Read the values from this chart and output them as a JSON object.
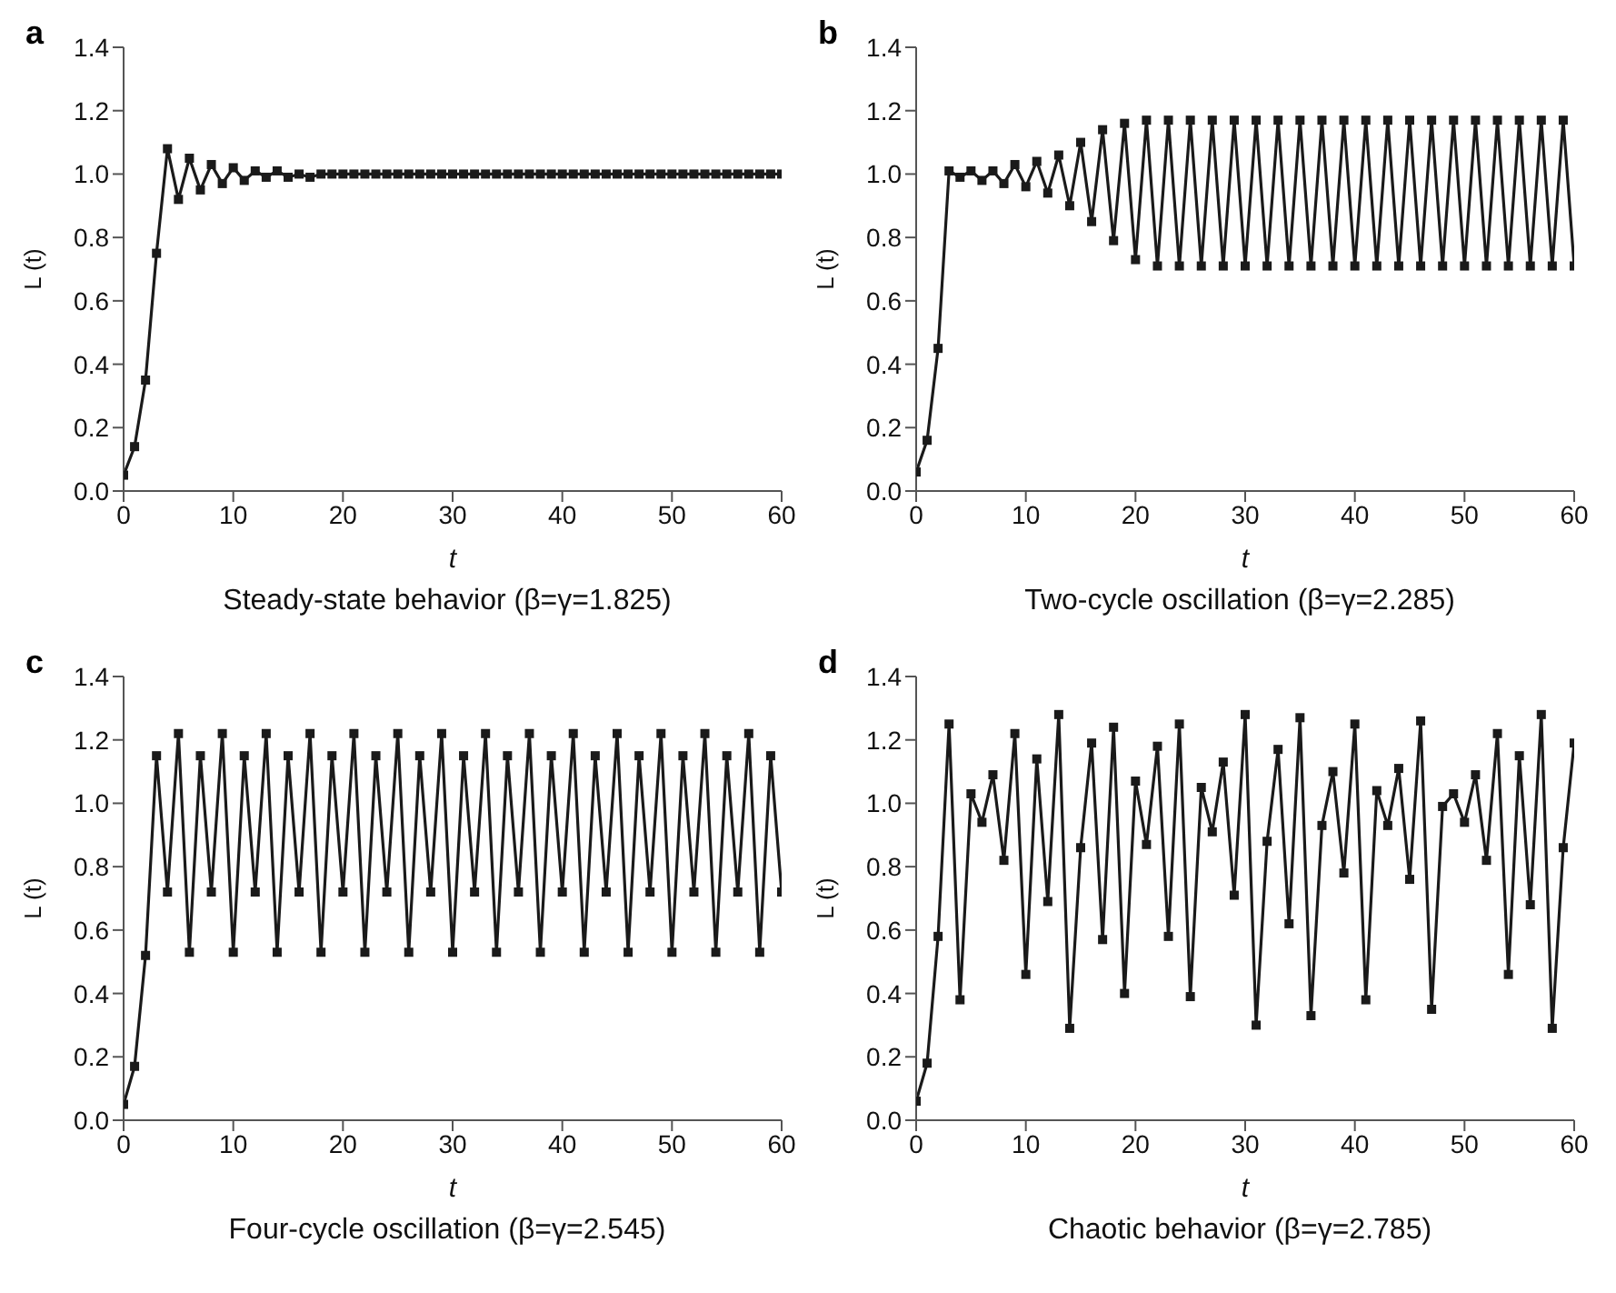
{
  "chart_data": [
    {
      "type": "line",
      "title": "Steady-state behavior (β=γ=1.825)",
      "annotations": [
        "a"
      ],
      "xlabel": "t",
      "ylabel": "L (t)",
      "marker": "square",
      "line_style": "solid",
      "xlim": [
        0,
        60
      ],
      "xticks": [
        0,
        10,
        20,
        30,
        40,
        50,
        60
      ],
      "ylim": [
        0,
        1.4
      ],
      "yticks": [
        {
          "value": 0,
          "label": "0.0"
        },
        {
          "value": 0.2,
          "label": "0.2"
        },
        {
          "value": 0.4,
          "label": "0.4"
        },
        {
          "value": 0.6,
          "label": "0.6"
        },
        {
          "value": 0.8,
          "label": "0.8"
        },
        {
          "value": 1.0,
          "label": "1.0"
        },
        {
          "value": 1.2,
          "label": "1.2"
        },
        {
          "value": 1.4,
          "label": "1.4"
        }
      ],
      "x": [
        0,
        1,
        2,
        3,
        4,
        5,
        6,
        7,
        8,
        9,
        10,
        11,
        12,
        13,
        14,
        15,
        16,
        17,
        18,
        19,
        20,
        21,
        22,
        23,
        24,
        25,
        26,
        27,
        28,
        29,
        30,
        31,
        32,
        33,
        34,
        35,
        36,
        37,
        38,
        39,
        40,
        41,
        42,
        43,
        44,
        45,
        46,
        47,
        48,
        49,
        50,
        51,
        52,
        53,
        54,
        55,
        56,
        57,
        58,
        59,
        60
      ],
      "series": [
        {
          "color": "#1a1a1a",
          "values": [
            0.05,
            0.14,
            0.35,
            0.75,
            1.08,
            0.92,
            1.05,
            0.95,
            1.03,
            0.97,
            1.02,
            0.98,
            1.01,
            0.99,
            1.01,
            0.99,
            1.0,
            0.99,
            1.0,
            1.0,
            1.0,
            1.0,
            1.0,
            1.0,
            1.0,
            1.0,
            1.0,
            1.0,
            1.0,
            1.0,
            1.0,
            1.0,
            1.0,
            1.0,
            1.0,
            1.0,
            1.0,
            1.0,
            1.0,
            1.0,
            1.0,
            1.0,
            1.0,
            1.0,
            1.0,
            1.0,
            1.0,
            1.0,
            1.0,
            1.0,
            1.0,
            1.0,
            1.0,
            1.0,
            1.0,
            1.0,
            1.0,
            1.0,
            1.0,
            1.0,
            1.0
          ]
        }
      ]
    },
    {
      "type": "line",
      "title": "Two-cycle oscillation (β=γ=2.285)",
      "annotations": [
        "b"
      ],
      "xlabel": "t",
      "ylabel": "L (t)",
      "marker": "square",
      "line_style": "solid",
      "xlim": [
        0,
        60
      ],
      "xticks": [
        0,
        10,
        20,
        30,
        40,
        50,
        60
      ],
      "ylim": [
        0,
        1.4
      ],
      "yticks": [
        {
          "value": 0,
          "label": "0.0"
        },
        {
          "value": 0.2,
          "label": "0.2"
        },
        {
          "value": 0.4,
          "label": "0.4"
        },
        {
          "value": 0.6,
          "label": "0.6"
        },
        {
          "value": 0.8,
          "label": "0.8"
        },
        {
          "value": 1.0,
          "label": "1.0"
        },
        {
          "value": 1.2,
          "label": "1.2"
        },
        {
          "value": 1.4,
          "label": "1.4"
        }
      ],
      "x": [
        0,
        1,
        2,
        3,
        4,
        5,
        6,
        7,
        8,
        9,
        10,
        11,
        12,
        13,
        14,
        15,
        16,
        17,
        18,
        19,
        20,
        21,
        22,
        23,
        24,
        25,
        26,
        27,
        28,
        29,
        30,
        31,
        32,
        33,
        34,
        35,
        36,
        37,
        38,
        39,
        40,
        41,
        42,
        43,
        44,
        45,
        46,
        47,
        48,
        49,
        50,
        51,
        52,
        53,
        54,
        55,
        56,
        57,
        58,
        59,
        60
      ],
      "series": [
        {
          "color": "#1a1a1a",
          "values": [
            0.06,
            0.16,
            0.45,
            1.01,
            0.99,
            1.01,
            0.98,
            1.01,
            0.97,
            1.03,
            0.96,
            1.04,
            0.94,
            1.06,
            0.9,
            1.1,
            0.85,
            1.14,
            0.79,
            1.16,
            0.73,
            1.17,
            0.71,
            1.17,
            0.71,
            1.17,
            0.71,
            1.17,
            0.71,
            1.17,
            0.71,
            1.17,
            0.71,
            1.17,
            0.71,
            1.17,
            0.71,
            1.17,
            0.71,
            1.17,
            0.71,
            1.17,
            0.71,
            1.17,
            0.71,
            1.17,
            0.71,
            1.17,
            0.71,
            1.17,
            0.71,
            1.17,
            0.71,
            1.17,
            0.71,
            1.17,
            0.71,
            1.17,
            0.71,
            1.17,
            0.71
          ]
        }
      ]
    },
    {
      "type": "line",
      "title": "Four-cycle oscillation (β=γ=2.545)",
      "annotations": [
        "c"
      ],
      "xlabel": "t",
      "ylabel": "L (t)",
      "marker": "square",
      "line_style": "solid",
      "xlim": [
        0,
        60
      ],
      "xticks": [
        0,
        10,
        20,
        30,
        40,
        50,
        60
      ],
      "ylim": [
        0,
        1.4
      ],
      "yticks": [
        {
          "value": 0,
          "label": "0.0"
        },
        {
          "value": 0.2,
          "label": "0.2"
        },
        {
          "value": 0.4,
          "label": "0.4"
        },
        {
          "value": 0.6,
          "label": "0.6"
        },
        {
          "value": 0.8,
          "label": "0.8"
        },
        {
          "value": 1.0,
          "label": "1.0"
        },
        {
          "value": 1.2,
          "label": "1.2"
        },
        {
          "value": 1.4,
          "label": "1.4"
        }
      ],
      "x": [
        0,
        1,
        2,
        3,
        4,
        5,
        6,
        7,
        8,
        9,
        10,
        11,
        12,
        13,
        14,
        15,
        16,
        17,
        18,
        19,
        20,
        21,
        22,
        23,
        24,
        25,
        26,
        27,
        28,
        29,
        30,
        31,
        32,
        33,
        34,
        35,
        36,
        37,
        38,
        39,
        40,
        41,
        42,
        43,
        44,
        45,
        46,
        47,
        48,
        49,
        50,
        51,
        52,
        53,
        54,
        55,
        56,
        57,
        58,
        59,
        60
      ],
      "series": [
        {
          "color": "#1a1a1a",
          "values": [
            0.05,
            0.17,
            0.52,
            1.15,
            0.72,
            1.22,
            0.53,
            1.15,
            0.72,
            1.22,
            0.53,
            1.15,
            0.72,
            1.22,
            0.53,
            1.15,
            0.72,
            1.22,
            0.53,
            1.15,
            0.72,
            1.22,
            0.53,
            1.15,
            0.72,
            1.22,
            0.53,
            1.15,
            0.72,
            1.22,
            0.53,
            1.15,
            0.72,
            1.22,
            0.53,
            1.15,
            0.72,
            1.22,
            0.53,
            1.15,
            0.72,
            1.22,
            0.53,
            1.15,
            0.72,
            1.22,
            0.53,
            1.15,
            0.72,
            1.22,
            0.53,
            1.15,
            0.72,
            1.22,
            0.53,
            1.15,
            0.72,
            1.22,
            0.53,
            1.15,
            0.72
          ]
        }
      ]
    },
    {
      "type": "line",
      "title": "Chaotic behavior (β=γ=2.785)",
      "annotations": [
        "d"
      ],
      "xlabel": "t",
      "ylabel": "L (t)",
      "marker": "square",
      "line_style": "solid",
      "xlim": [
        0,
        60
      ],
      "xticks": [
        0,
        10,
        20,
        30,
        40,
        50,
        60
      ],
      "ylim": [
        0,
        1.4
      ],
      "yticks": [
        {
          "value": 0,
          "label": "0.0"
        },
        {
          "value": 0.2,
          "label": "0.2"
        },
        {
          "value": 0.4,
          "label": "0.4"
        },
        {
          "value": 0.6,
          "label": "0.6"
        },
        {
          "value": 0.8,
          "label": "0.8"
        },
        {
          "value": 1.0,
          "label": "1.0"
        },
        {
          "value": 1.2,
          "label": "1.2"
        },
        {
          "value": 1.4,
          "label": "1.4"
        }
      ],
      "x": [
        0,
        1,
        2,
        3,
        4,
        5,
        6,
        7,
        8,
        9,
        10,
        11,
        12,
        13,
        14,
        15,
        16,
        17,
        18,
        19,
        20,
        21,
        22,
        23,
        24,
        25,
        26,
        27,
        28,
        29,
        30,
        31,
        32,
        33,
        34,
        35,
        36,
        37,
        38,
        39,
        40,
        41,
        42,
        43,
        44,
        45,
        46,
        47,
        48,
        49,
        50,
        51,
        52,
        53,
        54,
        55,
        56,
        57,
        58,
        59,
        60
      ],
      "series": [
        {
          "color": "#1a1a1a",
          "values": [
            0.06,
            0.18,
            0.58,
            1.25,
            0.38,
            1.03,
            0.94,
            1.09,
            0.82,
            1.22,
            0.46,
            1.14,
            0.69,
            1.28,
            0.29,
            0.86,
            1.19,
            0.57,
            1.24,
            0.4,
            1.07,
            0.87,
            1.18,
            0.58,
            1.25,
            0.39,
            1.05,
            0.91,
            1.13,
            0.71,
            1.28,
            0.3,
            0.88,
            1.17,
            0.62,
            1.27,
            0.33,
            0.93,
            1.1,
            0.78,
            1.25,
            0.38,
            1.04,
            0.93,
            1.11,
            0.76,
            1.26,
            0.35,
            0.99,
            1.03,
            0.94,
            1.09,
            0.82,
            1.22,
            0.46,
            1.15,
            0.68,
            1.28,
            0.29,
            0.86,
            1.19
          ]
        }
      ]
    }
  ]
}
